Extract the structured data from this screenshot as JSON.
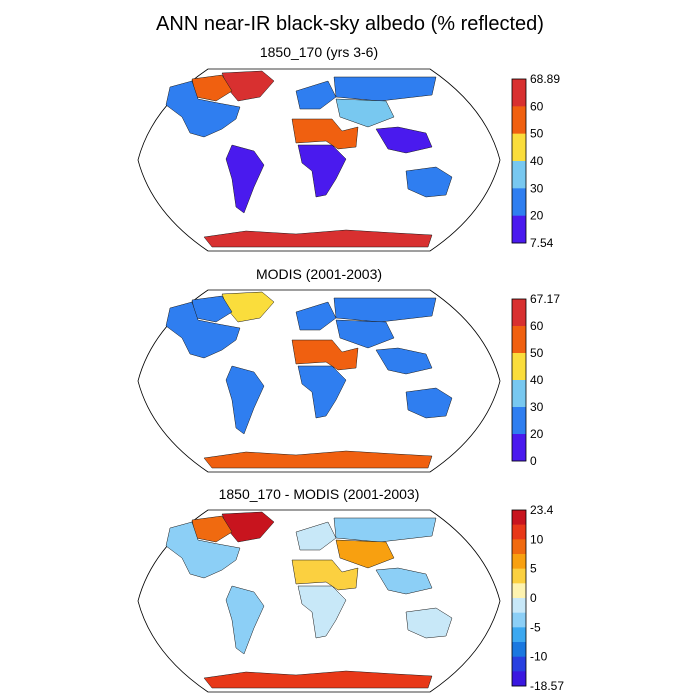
{
  "title": "ANN near-IR black-sky albedo (% reflected)",
  "chart_data": [
    {
      "type": "heatmap",
      "subtitle": "1850_170 (yrs 3-6)",
      "projection": "Robinson",
      "colorbar": {
        "labels": [
          "68.89",
          "60",
          "50",
          "40",
          "30",
          "20",
          "7.54"
        ],
        "colors": [
          "#d83030",
          "#f06010",
          "#fadd3c",
          "#78c8f0",
          "#2f7ef0",
          "#4a1aee"
        ]
      },
      "features": [
        {
          "region": "Antarctica",
          "band": 0
        },
        {
          "region": "Greenland",
          "band": 0
        },
        {
          "region": "Arctic Canada",
          "band": 1
        },
        {
          "region": "Sahara/Arabia",
          "band": 1
        },
        {
          "region": "Siberia",
          "band": 4
        },
        {
          "region": "Europe",
          "band": 4
        },
        {
          "region": "Central Asia",
          "band": 3
        },
        {
          "region": "North America",
          "band": 4
        },
        {
          "region": "Australia",
          "band": 4
        },
        {
          "region": "South America",
          "band": 5
        },
        {
          "region": "Central Africa",
          "band": 5
        },
        {
          "region": "Southeast Asia",
          "band": 5
        }
      ]
    },
    {
      "type": "heatmap",
      "subtitle": "MODIS (2001-2003)",
      "projection": "Robinson",
      "colorbar": {
        "labels": [
          "67.17",
          "60",
          "50",
          "40",
          "30",
          "20",
          "0"
        ],
        "colors": [
          "#d83030",
          "#f06010",
          "#fadd3c",
          "#78c8f0",
          "#2f7ef0",
          "#4a1aee"
        ]
      },
      "features": [
        {
          "region": "Antarctica",
          "band": 1
        },
        {
          "region": "Greenland",
          "band": 2
        },
        {
          "region": "Arctic Canada",
          "band": 4
        },
        {
          "region": "Sahara/Arabia",
          "band": 1
        },
        {
          "region": "Siberia",
          "band": 4
        },
        {
          "region": "Europe",
          "band": 4
        },
        {
          "region": "Central Asia",
          "band": 4
        },
        {
          "region": "North America",
          "band": 4
        },
        {
          "region": "Australia",
          "band": 4
        },
        {
          "region": "South America",
          "band": 4
        },
        {
          "region": "Central Africa",
          "band": 4
        },
        {
          "region": "Southeast Asia",
          "band": 4
        }
      ]
    },
    {
      "type": "heatmap",
      "subtitle": "1850_170 - MODIS (2001-2003)",
      "projection": "Robinson",
      "colorbar": {
        "labels": [
          "23.4",
          "",
          "10",
          "",
          "5",
          "",
          "0",
          "",
          "-5",
          "",
          "-10",
          "",
          "-18.57"
        ],
        "colors": [
          "#c8141e",
          "#e83818",
          "#f06a10",
          "#f8a010",
          "#fbd040",
          "#fdf3b0",
          "#c8e8f8",
          "#8ccff6",
          "#3ca8f0",
          "#1a78e0",
          "#2840e0",
          "#3a18e0"
        ]
      },
      "features": [
        {
          "region": "Antarctica",
          "band": 1
        },
        {
          "region": "Greenland",
          "band": 0
        },
        {
          "region": "Arctic Canada",
          "band": 2
        },
        {
          "region": "Sahara/Arabia",
          "band": 4
        },
        {
          "region": "Siberia",
          "band": 7
        },
        {
          "region": "Europe",
          "band": 6
        },
        {
          "region": "Central Asia",
          "band": 3
        },
        {
          "region": "North America",
          "band": 7
        },
        {
          "region": "Australia",
          "band": 6
        },
        {
          "region": "South America",
          "band": 7
        },
        {
          "region": "Central Africa",
          "band": 6
        },
        {
          "region": "Southeast Asia",
          "band": 7
        }
      ]
    }
  ]
}
